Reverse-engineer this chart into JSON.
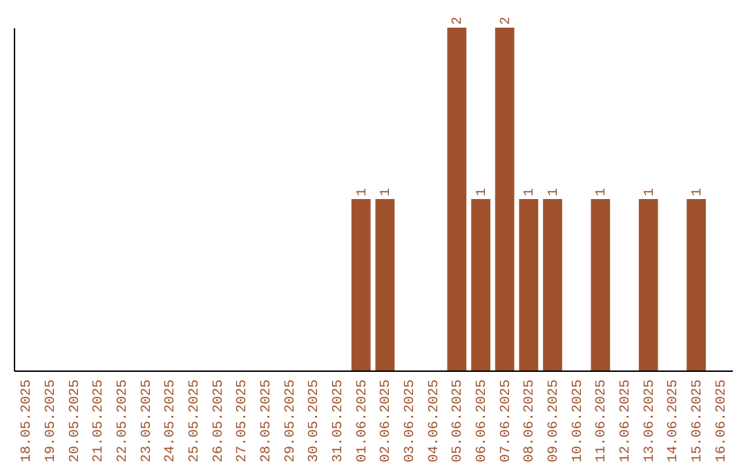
{
  "chart_data": {
    "type": "bar",
    "categories": [
      "18.05.2025",
      "19.05.2025",
      "20.05.2025",
      "21.05.2025",
      "22.05.2025",
      "23.05.2025",
      "24.05.2025",
      "25.05.2025",
      "26.05.2025",
      "27.05.2025",
      "28.05.2025",
      "29.05.2025",
      "30.05.2025",
      "31.05.2025",
      "01.06.2025",
      "02.06.2025",
      "03.06.2025",
      "04.06.2025",
      "05.06.2025",
      "06.06.2025",
      "07.06.2025",
      "08.06.2025",
      "09.06.2025",
      "10.06.2025",
      "11.06.2025",
      "12.06.2025",
      "13.06.2025",
      "14.06.2025",
      "15.06.2025",
      "16.06.2025"
    ],
    "values": [
      null,
      null,
      null,
      null,
      null,
      null,
      null,
      null,
      null,
      null,
      null,
      null,
      null,
      null,
      1,
      1,
      null,
      null,
      2,
      1,
      2,
      1,
      1,
      null,
      1,
      null,
      1,
      null,
      1,
      null
    ],
    "data_labels": true,
    "color": "#a0522d",
    "tick_labels": "x"
  }
}
